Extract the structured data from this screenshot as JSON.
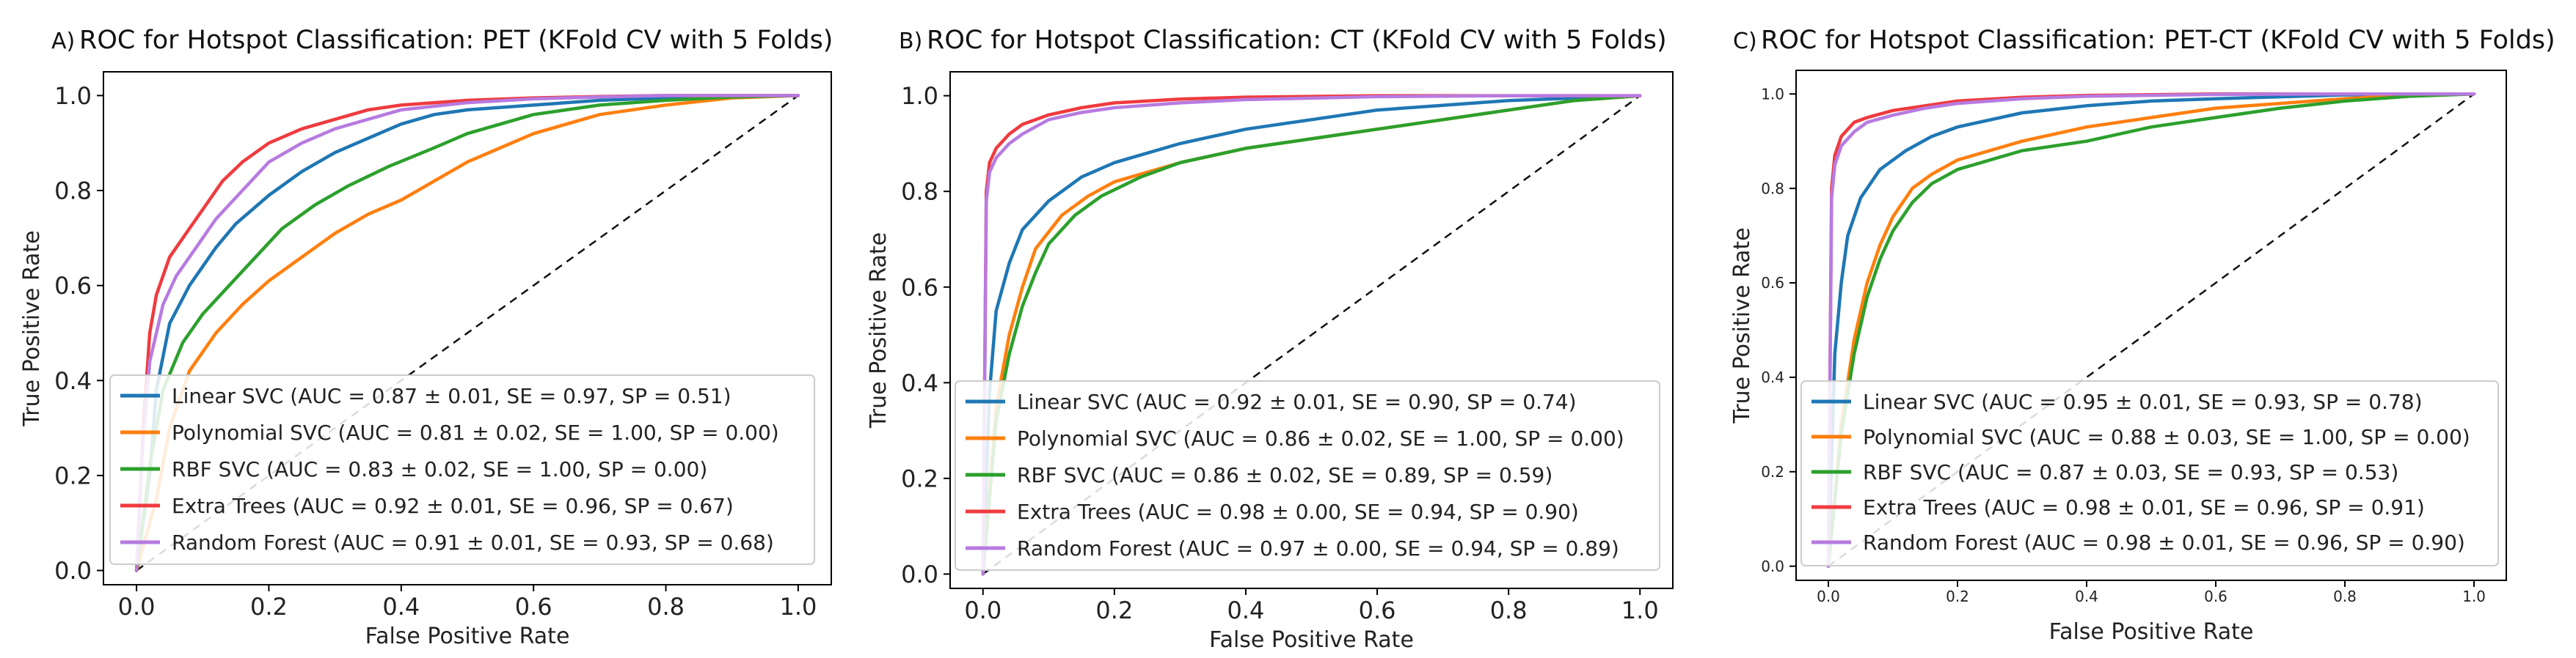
{
  "chart_data": [
    {
      "type": "line",
      "panel_label": "A)",
      "title": "ROC for Hotspot Classification: PET (KFold CV with 5 Folds)",
      "xlabel": "False Positive Rate",
      "ylabel": "True Positive Rate",
      "xlim": [
        -0.05,
        1.05
      ],
      "ylim": [
        -0.03,
        1.05
      ],
      "x_ticks": [
        0.0,
        0.2,
        0.4,
        0.6,
        0.8,
        1.0
      ],
      "y_ticks": [
        0.0,
        0.2,
        0.4,
        0.6,
        0.8,
        1.0
      ],
      "x_tick_labels": [
        "0.0",
        "0.2",
        "0.4",
        "0.6",
        "0.8",
        "1.0"
      ],
      "y_tick_labels": [
        "0.0",
        "0.2",
        "0.4",
        "0.6",
        "0.8",
        "1.0"
      ],
      "legend_position": "lower-right",
      "diagonal": true,
      "series": [
        {
          "name": "Linear SVC (AUC = 0.87 ± 0.01, SE = 0.97, SP = 0.51)",
          "color": "#1f77b4",
          "x": [
            0.0,
            0.02,
            0.03,
            0.05,
            0.08,
            0.12,
            0.15,
            0.2,
            0.25,
            0.3,
            0.35,
            0.4,
            0.45,
            0.5,
            0.6,
            0.7,
            0.8,
            0.9,
            1.0
          ],
          "y": [
            0.0,
            0.2,
            0.38,
            0.52,
            0.6,
            0.68,
            0.73,
            0.79,
            0.84,
            0.88,
            0.91,
            0.94,
            0.96,
            0.97,
            0.98,
            0.99,
            0.995,
            0.998,
            1.0
          ]
        },
        {
          "name": "Polynomial SVC (AUC = 0.81 ± 0.02, SE = 1.00, SP = 0.00)",
          "color": "#ff7f0e",
          "x": [
            0.0,
            0.03,
            0.05,
            0.08,
            0.12,
            0.16,
            0.2,
            0.25,
            0.3,
            0.35,
            0.4,
            0.45,
            0.5,
            0.6,
            0.7,
            0.8,
            0.9,
            1.0
          ],
          "y": [
            0.0,
            0.15,
            0.3,
            0.42,
            0.5,
            0.56,
            0.61,
            0.66,
            0.71,
            0.75,
            0.78,
            0.82,
            0.86,
            0.92,
            0.96,
            0.98,
            0.995,
            1.0
          ]
        },
        {
          "name": "RBF SVC (AUC = 0.83 ± 0.02, SE = 1.00, SP = 0.00)",
          "color": "#2ca02c",
          "x": [
            0.0,
            0.02,
            0.04,
            0.07,
            0.1,
            0.14,
            0.18,
            0.22,
            0.27,
            0.32,
            0.38,
            0.45,
            0.5,
            0.6,
            0.7,
            0.8,
            0.9,
            1.0
          ],
          "y": [
            0.0,
            0.22,
            0.38,
            0.48,
            0.54,
            0.6,
            0.66,
            0.72,
            0.77,
            0.81,
            0.85,
            0.89,
            0.92,
            0.96,
            0.98,
            0.99,
            0.997,
            1.0
          ]
        },
        {
          "name": "Extra Trees (AUC = 0.92 ± 0.01, SE = 0.96, SP = 0.67)",
          "color": "#ef3b3f",
          "x": [
            0.0,
            0.01,
            0.02,
            0.03,
            0.05,
            0.08,
            0.1,
            0.13,
            0.16,
            0.2,
            0.25,
            0.3,
            0.35,
            0.4,
            0.5,
            0.6,
            0.7,
            0.8,
            1.0
          ],
          "y": [
            0.0,
            0.3,
            0.5,
            0.58,
            0.66,
            0.72,
            0.76,
            0.82,
            0.86,
            0.9,
            0.93,
            0.95,
            0.97,
            0.98,
            0.99,
            0.995,
            0.998,
            1.0,
            1.0
          ]
        },
        {
          "name": "Random Forest (AUC = 0.91 ± 0.01, SE = 0.93, SP = 0.68)",
          "color": "#b77be0",
          "x": [
            0.0,
            0.01,
            0.02,
            0.04,
            0.06,
            0.09,
            0.12,
            0.16,
            0.2,
            0.25,
            0.3,
            0.35,
            0.4,
            0.5,
            0.6,
            0.7,
            0.8,
            1.0
          ],
          "y": [
            0.0,
            0.28,
            0.44,
            0.56,
            0.62,
            0.68,
            0.74,
            0.8,
            0.86,
            0.9,
            0.93,
            0.95,
            0.97,
            0.985,
            0.993,
            0.997,
            1.0,
            1.0
          ]
        }
      ]
    },
    {
      "type": "line",
      "panel_label": "B)",
      "title": "ROC for Hotspot Classification: CT (KFold CV with 5 Folds)",
      "xlabel": "False Positive Rate",
      "ylabel": "True Positive Rate",
      "xlim": [
        -0.05,
        1.05
      ],
      "ylim": [
        -0.03,
        1.05
      ],
      "x_ticks": [
        0.0,
        0.2,
        0.4,
        0.6,
        0.8,
        1.0
      ],
      "y_ticks": [
        0.0,
        0.2,
        0.4,
        0.6,
        0.8,
        1.0
      ],
      "x_tick_labels": [
        "0.0",
        "0.2",
        "0.4",
        "0.6",
        "0.8",
        "1.0"
      ],
      "y_tick_labels": [
        "0.0",
        "0.2",
        "0.4",
        "0.6",
        "0.8",
        "1.0"
      ],
      "legend_position": "lower-right",
      "diagonal": true,
      "series": [
        {
          "name": "Linear SVC (AUC = 0.92 ± 0.01, SE = 0.90, SP = 0.74)",
          "color": "#1f77b4",
          "x": [
            0.0,
            0.01,
            0.02,
            0.04,
            0.06,
            0.1,
            0.15,
            0.2,
            0.3,
            0.4,
            0.5,
            0.6,
            0.7,
            0.8,
            0.9,
            1.0
          ],
          "y": [
            0.0,
            0.38,
            0.55,
            0.65,
            0.72,
            0.78,
            0.83,
            0.86,
            0.9,
            0.93,
            0.95,
            0.97,
            0.98,
            0.99,
            0.995,
            1.0
          ]
        },
        {
          "name": "Polynomial SVC (AUC = 0.86 ± 0.02, SE = 1.00, SP = 0.00)",
          "color": "#ff7f0e",
          "x": [
            0.0,
            0.02,
            0.04,
            0.06,
            0.08,
            0.12,
            0.16,
            0.2,
            0.3,
            0.4,
            0.5,
            0.6,
            0.7,
            0.8,
            0.9,
            1.0
          ],
          "y": [
            0.0,
            0.35,
            0.5,
            0.6,
            0.68,
            0.75,
            0.79,
            0.82,
            0.86,
            0.89,
            0.91,
            0.93,
            0.95,
            0.97,
            0.99,
            1.0
          ]
        },
        {
          "name": "RBF SVC (AUC = 0.86 ± 0.02, SE = 0.89, SP = 0.59)",
          "color": "#2ca02c",
          "x": [
            0.0,
            0.02,
            0.04,
            0.06,
            0.08,
            0.1,
            0.14,
            0.18,
            0.24,
            0.3,
            0.4,
            0.5,
            0.6,
            0.7,
            0.8,
            0.9,
            1.0
          ],
          "y": [
            0.0,
            0.32,
            0.46,
            0.56,
            0.63,
            0.69,
            0.75,
            0.79,
            0.83,
            0.86,
            0.89,
            0.91,
            0.93,
            0.95,
            0.97,
            0.99,
            1.0
          ]
        },
        {
          "name": "Extra Trees (AUC = 0.98 ± 0.00, SE = 0.94, SP = 0.90)",
          "color": "#ef3b3f",
          "x": [
            0.0,
            0.005,
            0.01,
            0.02,
            0.04,
            0.06,
            0.1,
            0.15,
            0.2,
            0.3,
            0.4,
            0.6,
            0.8,
            1.0
          ],
          "y": [
            0.0,
            0.8,
            0.86,
            0.89,
            0.92,
            0.94,
            0.96,
            0.975,
            0.985,
            0.993,
            0.997,
            1.0,
            1.0,
            1.0
          ]
        },
        {
          "name": "Random Forest (AUC = 0.97 ± 0.00, SE = 0.94, SP = 0.89)",
          "color": "#b77be0",
          "x": [
            0.0,
            0.005,
            0.01,
            0.02,
            0.04,
            0.06,
            0.1,
            0.15,
            0.2,
            0.3,
            0.4,
            0.6,
            0.8,
            1.0
          ],
          "y": [
            0.0,
            0.78,
            0.84,
            0.87,
            0.9,
            0.92,
            0.95,
            0.965,
            0.975,
            0.985,
            0.992,
            0.998,
            1.0,
            1.0
          ]
        }
      ]
    },
    {
      "type": "line",
      "panel_label": "C)",
      "title": "ROC for Hotspot Classification: PET-CT (KFold CV with 5 Folds)",
      "xlabel": "False Positive Rate",
      "ylabel": "True Positive Rate",
      "xlim": [
        -0.05,
        1.05
      ],
      "ylim": [
        -0.03,
        1.05
      ],
      "x_ticks": [
        0.0,
        0.2,
        0.4,
        0.6,
        0.8,
        1.0
      ],
      "y_ticks": [
        0.0,
        0.2,
        0.4,
        0.6,
        0.8,
        1.0
      ],
      "x_tick_labels": [
        "0.0",
        "0.2",
        "0.4",
        "0.6",
        "0.8",
        "1.0"
      ],
      "y_tick_labels": [
        "0.0",
        "0.2",
        "0.4",
        "0.6",
        "0.8",
        "1.0"
      ],
      "legend_position": "lower-right",
      "diagonal": true,
      "series": [
        {
          "name": "Linear SVC (AUC = 0.95 ± 0.01, SE = 0.93, SP = 0.78)",
          "color": "#1f77b4",
          "x": [
            0.0,
            0.01,
            0.02,
            0.03,
            0.05,
            0.08,
            0.12,
            0.16,
            0.2,
            0.3,
            0.4,
            0.5,
            0.6,
            0.8,
            1.0
          ],
          "y": [
            0.0,
            0.45,
            0.6,
            0.7,
            0.78,
            0.84,
            0.88,
            0.91,
            0.93,
            0.96,
            0.975,
            0.985,
            0.99,
            0.998,
            1.0
          ]
        },
        {
          "name": "Polynomial SVC (AUC = 0.88 ± 0.03, SE = 1.00, SP = 0.00)",
          "color": "#ff7f0e",
          "x": [
            0.0,
            0.02,
            0.04,
            0.06,
            0.08,
            0.1,
            0.13,
            0.16,
            0.2,
            0.3,
            0.4,
            0.5,
            0.6,
            0.7,
            0.8,
            0.9,
            1.0
          ],
          "y": [
            0.0,
            0.3,
            0.48,
            0.6,
            0.68,
            0.74,
            0.8,
            0.83,
            0.86,
            0.9,
            0.93,
            0.95,
            0.97,
            0.98,
            0.99,
            0.998,
            1.0
          ]
        },
        {
          "name": "RBF SVC (AUC = 0.87 ± 0.03, SE = 0.93, SP = 0.53)",
          "color": "#2ca02c",
          "x": [
            0.0,
            0.02,
            0.04,
            0.06,
            0.08,
            0.1,
            0.13,
            0.16,
            0.2,
            0.3,
            0.4,
            0.5,
            0.6,
            0.7,
            0.8,
            0.9,
            1.0
          ],
          "y": [
            0.0,
            0.28,
            0.45,
            0.57,
            0.65,
            0.71,
            0.77,
            0.81,
            0.84,
            0.88,
            0.9,
            0.93,
            0.95,
            0.97,
            0.985,
            0.995,
            1.0
          ]
        },
        {
          "name": "Extra Trees (AUC = 0.98 ± 0.01, SE = 0.96, SP = 0.91)",
          "color": "#ef3b3f",
          "x": [
            0.0,
            0.005,
            0.01,
            0.02,
            0.04,
            0.06,
            0.1,
            0.15,
            0.2,
            0.3,
            0.4,
            0.6,
            0.8,
            1.0
          ],
          "y": [
            0.0,
            0.8,
            0.87,
            0.91,
            0.94,
            0.95,
            0.965,
            0.975,
            0.985,
            0.993,
            0.997,
            1.0,
            1.0,
            1.0
          ]
        },
        {
          "name": "Random Forest (AUC = 0.98 ± 0.01, SE = 0.96, SP = 0.90)",
          "color": "#b77be0",
          "x": [
            0.0,
            0.005,
            0.01,
            0.02,
            0.04,
            0.06,
            0.1,
            0.15,
            0.2,
            0.3,
            0.4,
            0.6,
            0.8,
            1.0
          ],
          "y": [
            0.0,
            0.78,
            0.85,
            0.89,
            0.92,
            0.94,
            0.955,
            0.97,
            0.98,
            0.99,
            0.995,
            0.999,
            1.0,
            1.0
          ]
        }
      ]
    }
  ]
}
